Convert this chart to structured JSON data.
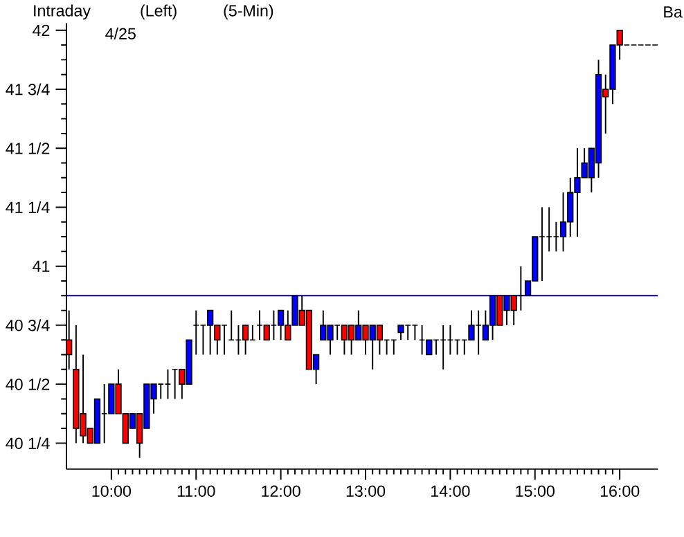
{
  "chart_data": {
    "type": "candlestick",
    "title": "Intraday",
    "subtitle": "4/25",
    "annotations": [
      "(Left)",
      "(5-Min)",
      "Ba"
    ],
    "x": [
      9.5,
      9.5833,
      9.6667,
      9.75,
      9.8333,
      9.9167,
      10,
      10.0833,
      10.1667,
      10.25,
      10.3333,
      10.4167,
      10.5,
      10.5833,
      10.6667,
      10.75,
      10.8333,
      10.9167,
      11,
      11.0833,
      11.1667,
      11.25,
      11.3333,
      11.4167,
      11.5,
      11.5833,
      11.6667,
      11.75,
      11.8333,
      11.9167,
      12,
      12.0833,
      12.1667,
      12.25,
      12.3333,
      12.4167,
      12.5,
      12.5833,
      12.6667,
      12.75,
      12.8333,
      12.9167,
      13,
      13.0833,
      13.1667,
      13.25,
      13.3333,
      13.4167,
      13.5,
      13.5833,
      13.6667,
      13.75,
      13.8333,
      13.9167,
      14,
      14.0833,
      14.1667,
      14.25,
      14.3333,
      14.4167,
      14.5,
      14.5833,
      14.6667,
      14.75,
      14.8333,
      14.9167,
      15,
      15.0833,
      15.1667,
      15.25,
      15.3333,
      15.4167,
      15.5,
      15.5833,
      15.6667,
      15.75,
      15.8333,
      15.9167,
      16,
      16.0833,
      16.1667,
      16.25,
      16.3333,
      16.4167
    ],
    "ohlc": [
      [
        40.6875,
        40.8125,
        40.5625,
        40.625
      ],
      [
        40.5625,
        40.75,
        40.25,
        40.3125
      ],
      [
        40.375,
        40.625,
        40.25,
        40.28125
      ],
      [
        40.3125,
        40.3125,
        40.25,
        40.25
      ],
      [
        40.25,
        40.4375,
        40.25,
        40.4375
      ],
      [
        40.375,
        40.5,
        40.25,
        40.375
      ],
      [
        40.375,
        40.5,
        40.375,
        40.5
      ],
      [
        40.5,
        40.5625,
        40.375,
        40.375
      ],
      [
        40.375,
        40.375,
        40.25,
        40.25
      ],
      [
        40.3125,
        40.375,
        40.3125,
        40.375
      ],
      [
        40.375,
        40.375,
        40.1875,
        40.25
      ],
      [
        40.3125,
        40.5,
        40.3125,
        40.5
      ],
      [
        40.4375,
        40.5,
        40.375,
        40.5
      ],
      [
        40.5,
        40.5,
        40.4375,
        40.5
      ],
      [
        40.5,
        40.5625,
        40.4375,
        40.5
      ],
      [
        40.5625,
        40.5625,
        40.4375,
        40.5625
      ],
      [
        40.5625,
        40.5625,
        40.4375,
        40.5
      ],
      [
        40.5,
        40.6875,
        40.5,
        40.6875
      ],
      [
        40.75,
        40.8125,
        40.625,
        40.75
      ],
      [
        40.75,
        40.75,
        40.625,
        40.75
      ],
      [
        40.75,
        40.8125,
        40.625,
        40.8125
      ],
      [
        40.75,
        40.75,
        40.625,
        40.6875
      ],
      [
        40.75,
        40.75,
        40.625,
        40.75
      ],
      [
        40.6875,
        40.8125,
        40.6875,
        40.6875
      ],
      [
        40.6875,
        40.75,
        40.625,
        40.6875
      ],
      [
        40.75,
        40.75,
        40.625,
        40.6875
      ],
      [
        40.6875,
        40.75,
        40.6875,
        40.6875
      ],
      [
        40.75,
        40.8125,
        40.6875,
        40.75
      ],
      [
        40.75,
        40.75,
        40.6875,
        40.6875
      ],
      [
        40.75,
        40.8125,
        40.6875,
        40.75
      ],
      [
        40.75,
        40.8125,
        40.6875,
        40.8125
      ],
      [
        40.75,
        40.8125,
        40.6875,
        40.6875
      ],
      [
        40.75,
        40.875,
        40.75,
        40.875
      ],
      [
        40.8125,
        40.875,
        40.75,
        40.75
      ],
      [
        40.8125,
        40.8125,
        40.5625,
        40.5625
      ],
      [
        40.5625,
        40.625,
        40.5,
        40.625
      ],
      [
        40.6875,
        40.8125,
        40.6875,
        40.75
      ],
      [
        40.6875,
        40.75,
        40.625,
        40.75
      ],
      [
        40.75,
        40.75,
        40.6875,
        40.75
      ],
      [
        40.75,
        40.75,
        40.625,
        40.6875
      ],
      [
        40.75,
        40.75,
        40.625,
        40.6875
      ],
      [
        40.6875,
        40.8125,
        40.6875,
        40.75
      ],
      [
        40.75,
        40.75,
        40.625,
        40.6875
      ],
      [
        40.6875,
        40.75,
        40.5625,
        40.75
      ],
      [
        40.75,
        40.75,
        40.625,
        40.6875
      ],
      [
        40.6875,
        40.6875,
        40.625,
        40.6875
      ],
      [
        40.6875,
        40.6875,
        40.625,
        40.6875
      ],
      [
        40.71875,
        40.75,
        40.6875,
        40.75
      ],
      [
        40.75,
        40.75,
        40.6875,
        40.75
      ],
      [
        40.75,
        40.75,
        40.6875,
        40.75
      ],
      [
        40.6875,
        40.75,
        40.625,
        40.6875
      ],
      [
        40.625,
        40.6875,
        40.625,
        40.6875
      ],
      [
        40.6875,
        40.6875,
        40.625,
        40.6875
      ],
      [
        40.6875,
        40.75,
        40.5625,
        40.6875
      ],
      [
        40.6875,
        40.75,
        40.625,
        40.6875
      ],
      [
        40.6875,
        40.6875,
        40.625,
        40.6875
      ],
      [
        40.6875,
        40.6875,
        40.625,
        40.6875
      ],
      [
        40.6875,
        40.8125,
        40.6875,
        40.75
      ],
      [
        40.75,
        40.8125,
        40.625,
        40.75
      ],
      [
        40.6875,
        40.8125,
        40.6875,
        40.75
      ],
      [
        40.75,
        40.875,
        40.6875,
        40.875
      ],
      [
        40.875,
        40.875,
        40.75,
        40.75
      ],
      [
        40.8125,
        40.875,
        40.75,
        40.875
      ],
      [
        40.875,
        40.875,
        40.75,
        40.8125
      ],
      [
        40.875,
        41,
        40.8125,
        40.875
      ],
      [
        40.875,
        40.9375,
        40.875,
        40.9375
      ],
      [
        40.9375,
        41.125,
        40.9375,
        41.125
      ],
      [
        41.125,
        41.25,
        40.9375,
        41.125
      ],
      [
        41.125,
        41.25,
        41.0625,
        41.125
      ],
      [
        41.125,
        41.1875,
        41.0625,
        41.125
      ],
      [
        41.125,
        41.3125,
        41.0625,
        41.1875
      ],
      [
        41.1875,
        41.375,
        41.125,
        41.3125
      ],
      [
        41.3125,
        41.5,
        41.125,
        41.375
      ],
      [
        41.375,
        41.5,
        41.375,
        41.4375
      ],
      [
        41.375,
        41.5,
        41.3125,
        41.5
      ],
      [
        41.4375,
        41.875,
        41.375,
        41.8125
      ],
      [
        41.75,
        41.8125,
        41.5625,
        41.71875
      ],
      [
        41.75,
        41.9375,
        41.6875,
        41.9375
      ],
      [
        42,
        42,
        41.875,
        41.9375
      ],
      [
        41.9375,
        41.9375,
        41.9375,
        41.9375
      ],
      [
        41.9375,
        41.9375,
        41.9375,
        41.9375
      ],
      [
        41.9375,
        41.9375,
        41.9375,
        41.9375
      ],
      [
        41.9375,
        41.9375,
        41.9375,
        41.9375
      ],
      [
        41.9375,
        41.9375,
        41.9375,
        41.9375
      ]
    ],
    "colors": [
      "#ff0000",
      "#ff0000",
      "#ff0000",
      "#ff0000",
      "#0000ff",
      "#000000",
      "#0000ff",
      "#ff0000",
      "#ff0000",
      "#0000ff",
      "#ff0000",
      "#0000ff",
      "#0000ff",
      "#000000",
      "#000000",
      "#000000",
      "#ff0000",
      "#0000ff",
      "#000000",
      "#000000",
      "#0000ff",
      "#ff0000",
      "#000000",
      "#000000",
      "#000000",
      "#ff0000",
      "#000000",
      "#000000",
      "#ff0000",
      "#000000",
      "#0000ff",
      "#ff0000",
      "#0000ff",
      "#ff0000",
      "#ff0000",
      "#0000ff",
      "#0000ff",
      "#0000ff",
      "#000000",
      "#ff0000",
      "#ff0000",
      "#0000ff",
      "#ff0000",
      "#0000ff",
      "#ff0000",
      "#000000",
      "#000000",
      "#0000ff",
      "#000000",
      "#000000",
      "#000000",
      "#0000ff",
      "#000000",
      "#000000",
      "#000000",
      "#000000",
      "#000000",
      "#0000ff",
      "#000000",
      "#0000ff",
      "#0000ff",
      "#ff0000",
      "#0000ff",
      "#ff0000",
      "#000000",
      "#0000ff",
      "#0000ff",
      "#000000",
      "#000000",
      "#000000",
      "#0000ff",
      "#0000ff",
      "#0000ff",
      "#0000ff",
      "#0000ff",
      "#0000ff",
      "#ff0000",
      "#0000ff",
      "#ff0000",
      "#000000",
      "#000000",
      "#000000",
      "#000000",
      "#000000"
    ],
    "xlim": [
      9.47,
      16.45
    ],
    "ylim": [
      40.14,
      42.03
    ],
    "xticks": [
      {
        "value": 10,
        "label": "10:00"
      },
      {
        "value": 11,
        "label": "11:00"
      },
      {
        "value": 12,
        "label": "12:00"
      },
      {
        "value": 13,
        "label": "13:00"
      },
      {
        "value": 14,
        "label": "14:00"
      },
      {
        "value": 15,
        "label": "15:00"
      },
      {
        "value": 16,
        "label": "16:00"
      }
    ],
    "yticks": [
      {
        "value": 40.25,
        "label": "40 1/4"
      },
      {
        "value": 40.5,
        "label": "40 1/2"
      },
      {
        "value": 40.75,
        "label": "40 3/4"
      },
      41,
      {
        "value": 41.25,
        "label": "41 1/4"
      },
      {
        "value": 41.5,
        "label": "41 1/2"
      },
      {
        "value": 41.75,
        "label": "41 3/4"
      },
      42
    ],
    "ref_lines": [
      {
        "axis": "y",
        "value": 40.875,
        "color": "#000080"
      }
    ]
  }
}
